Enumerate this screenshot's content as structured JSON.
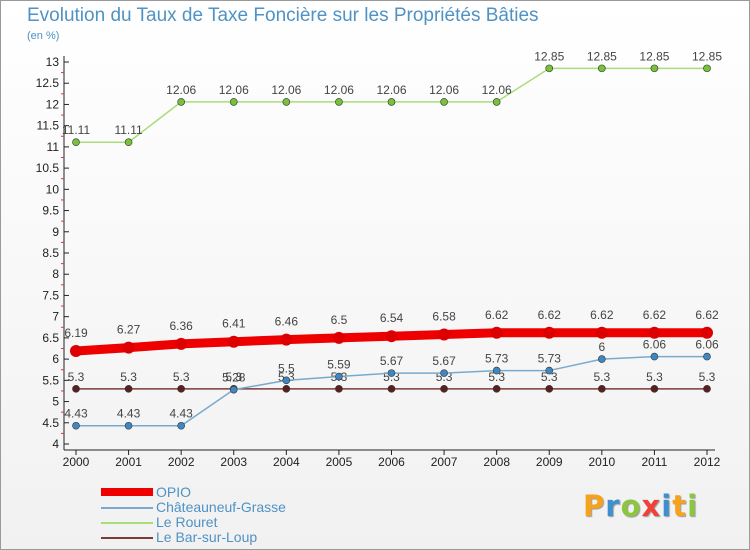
{
  "header": {
    "title": "Evolution du Taux de Taxe Foncière sur les Propriétés Bâties",
    "unit": "(en %)"
  },
  "brand": {
    "text": "Proxiti",
    "letters": [
      {
        "ch": "P",
        "color": "#f7a21b"
      },
      {
        "ch": "r",
        "color": "#3d8fcf"
      },
      {
        "ch": "o",
        "color": "#8cc63f"
      },
      {
        "ch": "x",
        "color": "#ef4136"
      },
      {
        "ch": "i",
        "color": "#3d8fcf"
      },
      {
        "ch": "t",
        "color": "#f7a21b"
      },
      {
        "ch": "i",
        "color": "#8cc63f"
      }
    ]
  },
  "chart_data": {
    "type": "line",
    "title": "Evolution du Taux de Taxe Foncière sur les Propriétés Bâties",
    "ylabel": "(en %)",
    "xlabel": "",
    "grid": false,
    "legend_position": "bottom-left",
    "ylim": [
      4,
      13
    ],
    "yticks": [
      "4",
      "4.5",
      "5",
      "5.5",
      "6",
      "6.5",
      "7",
      "7.5",
      "8",
      "8.5",
      "9",
      "9.5",
      "10",
      "10.5",
      "11",
      "11.5",
      "12",
      "12.5",
      "13"
    ],
    "x": [
      "2000",
      "2001",
      "2002",
      "2003",
      "2004",
      "2005",
      "2006",
      "2007",
      "2008",
      "2009",
      "2010",
      "2011",
      "2012"
    ],
    "series": [
      {
        "name": "Le Bar-sur-Loup",
        "color": "#7a3b3b",
        "marker": "#5a2020",
        "values": [
          5.3,
          5.3,
          5.3,
          5.3,
          5.3,
          5.3,
          5.3,
          5.3,
          5.3,
          5.3,
          5.3,
          5.3,
          5.3
        ],
        "labels": [
          "5.3",
          "5.3",
          "5.3",
          "5.3",
          "5.3",
          "5.3",
          "5.3",
          "5.3",
          "5.3",
          "5.3",
          "5.3",
          "5.3",
          "5.3"
        ]
      },
      {
        "name": "Châteauneuf-Grasse",
        "color": "#79aacd",
        "marker": "#3f87c2",
        "values": [
          4.43,
          4.43,
          4.43,
          5.28,
          5.5,
          5.59,
          5.67,
          5.67,
          5.73,
          5.73,
          6.0,
          6.06,
          6.06
        ],
        "labels": [
          "4.43",
          "4.43",
          "4.43",
          "5.28",
          "5.5",
          "5.59",
          "5.67",
          "5.67",
          "5.73",
          "5.73",
          "6",
          "6.06",
          "6.06"
        ]
      },
      {
        "name": "Le Rouret",
        "color": "#a9dd7a",
        "marker": "#78c23a",
        "values": [
          11.11,
          11.11,
          12.06,
          12.06,
          12.06,
          12.06,
          12.06,
          12.06,
          12.06,
          12.85,
          12.85,
          12.85,
          12.85
        ],
        "labels": [
          "11.11",
          "11.11",
          "12.06",
          "12.06",
          "12.06",
          "12.06",
          "12.06",
          "12.06",
          "12.06",
          "12.85",
          "12.85",
          "12.85",
          "12.85"
        ]
      },
      {
        "name": "OPIO",
        "color": "#ee0000",
        "marker": "#dd0000",
        "values": [
          6.19,
          6.27,
          6.36,
          6.41,
          6.46,
          6.5,
          6.54,
          6.58,
          6.62,
          6.62,
          6.62,
          6.62,
          6.62
        ],
        "labels": [
          "6.19",
          "6.27",
          "6.36",
          "6.41",
          "6.46",
          "6.5",
          "6.54",
          "6.58",
          "6.62",
          "6.62",
          "6.62",
          "6.62",
          "6.62"
        ]
      }
    ]
  },
  "legend": {
    "items": [
      {
        "label": "OPIO",
        "color": "#ee0000",
        "thick": true
      },
      {
        "label": "Châteauneuf-Grasse",
        "color": "#79aacd",
        "thick": false
      },
      {
        "label": "Le Rouret",
        "color": "#a9dd7a",
        "thick": false
      },
      {
        "label": "Le Bar-sur-Loup",
        "color": "#7a3b3b",
        "thick": false
      }
    ]
  }
}
